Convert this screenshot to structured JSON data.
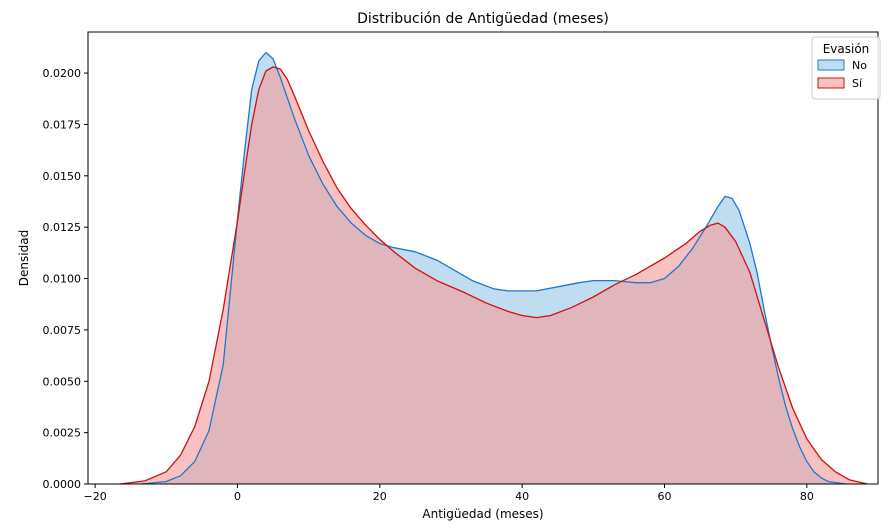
{
  "chart_data": {
    "type": "area",
    "title": "Distribución de Antigüedad (meses)",
    "xlabel": "Antigüedad (meses)",
    "ylabel": "Densidad",
    "xlim": [
      -21,
      90
    ],
    "ylim": [
      0,
      0.022
    ],
    "xticks": [
      -20,
      0,
      20,
      40,
      60,
      80
    ],
    "xtick_labels": [
      "−20",
      "0",
      "20",
      "40",
      "60",
      "80"
    ],
    "yticks": [
      0,
      0.0025,
      0.005,
      0.0075,
      0.01,
      0.0125,
      0.015,
      0.0175,
      0.02
    ],
    "ytick_labels": [
      "0.0000",
      "0.0025",
      "0.0050",
      "0.0075",
      "0.0100",
      "0.0125",
      "0.0150",
      "0.0175",
      "0.0200"
    ],
    "grid": false,
    "legend": {
      "title": "Evasión",
      "placement": "top-right"
    },
    "series": [
      {
        "name": "No",
        "line_color": "#1f77d0",
        "fill_color": "#9ecae9",
        "points": [
          [
            -13.5,
            0.0
          ],
          [
            -10,
            0.00012
          ],
          [
            -8,
            0.0004
          ],
          [
            -6,
            0.0011
          ],
          [
            -4,
            0.0026
          ],
          [
            -2,
            0.0058
          ],
          [
            0,
            0.0129
          ],
          [
            1,
            0.0162
          ],
          [
            2,
            0.0192
          ],
          [
            3,
            0.0206
          ],
          [
            4,
            0.021
          ],
          [
            5,
            0.0207
          ],
          [
            6,
            0.0198
          ],
          [
            8,
            0.0178
          ],
          [
            10,
            0.016
          ],
          [
            12,
            0.0146
          ],
          [
            14,
            0.0135
          ],
          [
            16,
            0.0127
          ],
          [
            18,
            0.0121
          ],
          [
            20,
            0.0117
          ],
          [
            22,
            0.0115
          ],
          [
            25,
            0.0113
          ],
          [
            28,
            0.0109
          ],
          [
            30,
            0.0105
          ],
          [
            33,
            0.0099
          ],
          [
            36,
            0.0095
          ],
          [
            38,
            0.0094
          ],
          [
            40,
            0.0094
          ],
          [
            42,
            0.0094
          ],
          [
            45,
            0.0096
          ],
          [
            48,
            0.0098
          ],
          [
            50,
            0.0099
          ],
          [
            53,
            0.0099
          ],
          [
            56,
            0.0098
          ],
          [
            58,
            0.0098
          ],
          [
            60,
            0.01
          ],
          [
            62,
            0.0106
          ],
          [
            64,
            0.0115
          ],
          [
            66,
            0.0126
          ],
          [
            67.5,
            0.0135
          ],
          [
            68.5,
            0.014
          ],
          [
            69.5,
            0.0139
          ],
          [
            70.5,
            0.0133
          ],
          [
            72,
            0.0117
          ],
          [
            73,
            0.0103
          ],
          [
            74,
            0.0085
          ],
          [
            75,
            0.0068
          ],
          [
            76,
            0.0052
          ],
          [
            77,
            0.0038
          ],
          [
            78,
            0.0027
          ],
          [
            79,
            0.0018
          ],
          [
            80,
            0.0011
          ],
          [
            81,
            0.0006
          ],
          [
            82,
            0.0003
          ],
          [
            83,
            0.00012
          ],
          [
            85.5,
            0.0
          ]
        ]
      },
      {
        "name": "Sí",
        "line_color": "#cc1111",
        "fill_color": "#f2a0a0",
        "points": [
          [
            -16.5,
            0.0
          ],
          [
            -13,
            0.00015
          ],
          [
            -10,
            0.0006
          ],
          [
            -8,
            0.0014
          ],
          [
            -6,
            0.0028
          ],
          [
            -4,
            0.005
          ],
          [
            -2,
            0.0085
          ],
          [
            0,
            0.0128
          ],
          [
            1,
            0.0152
          ],
          [
            2,
            0.0175
          ],
          [
            3,
            0.0192
          ],
          [
            4,
            0.0201
          ],
          [
            5,
            0.0203
          ],
          [
            6,
            0.0202
          ],
          [
            7,
            0.0197
          ],
          [
            8,
            0.0189
          ],
          [
            10,
            0.0172
          ],
          [
            12,
            0.0157
          ],
          [
            14,
            0.0144
          ],
          [
            16,
            0.0134
          ],
          [
            18,
            0.0126
          ],
          [
            20,
            0.0119
          ],
          [
            22,
            0.0113
          ],
          [
            25,
            0.0105
          ],
          [
            28,
            0.0099
          ],
          [
            32,
            0.0093
          ],
          [
            35,
            0.0088
          ],
          [
            38,
            0.0084
          ],
          [
            40,
            0.0082
          ],
          [
            42,
            0.0081
          ],
          [
            44,
            0.0082
          ],
          [
            47,
            0.0086
          ],
          [
            50,
            0.0091
          ],
          [
            53,
            0.0097
          ],
          [
            56,
            0.0102
          ],
          [
            60,
            0.011
          ],
          [
            63,
            0.0117
          ],
          [
            65,
            0.0123
          ],
          [
            66.5,
            0.0126
          ],
          [
            67.5,
            0.0127
          ],
          [
            68.5,
            0.0125
          ],
          [
            70,
            0.0118
          ],
          [
            72,
            0.0103
          ],
          [
            74,
            0.008
          ],
          [
            76,
            0.0057
          ],
          [
            78,
            0.0037
          ],
          [
            80,
            0.0022
          ],
          [
            82,
            0.0012
          ],
          [
            84,
            0.0006
          ],
          [
            86,
            0.0002
          ],
          [
            88.5,
            0.0
          ]
        ]
      }
    ]
  }
}
